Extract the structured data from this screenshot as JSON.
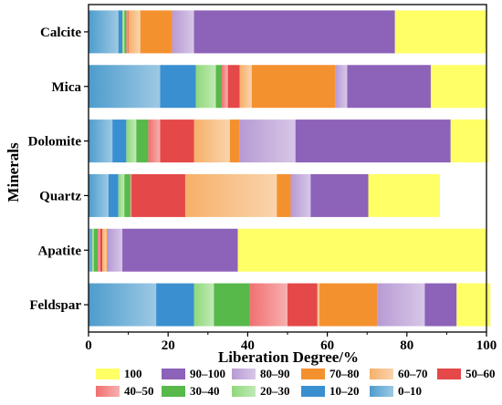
{
  "chart_data": {
    "type": "bar",
    "orientation": "horizontal",
    "stacked": true,
    "title": "",
    "xlabel": "Liberation Degree/%",
    "ylabel": "Minerals",
    "xlim": [
      0,
      100
    ],
    "xticks": [
      0,
      20,
      40,
      60,
      80,
      100
    ],
    "grid": false,
    "legend_position": "bottom",
    "categories": [
      "Calcite",
      "Mica",
      "Dolomite",
      "Quartz",
      "Apatite",
      "Feldspar"
    ],
    "series": [
      {
        "name": "0–10",
        "color": "#4d9ccd",
        "gradient": true,
        "values": [
          7.5,
          18.0,
          6.0,
          5.0,
          0.5,
          17.0
        ]
      },
      {
        "name": "10–20",
        "color": "#3a8fd0",
        "gradient": false,
        "values": [
          1.0,
          9.0,
          3.5,
          2.5,
          0.3,
          9.5
        ]
      },
      {
        "name": "20–30",
        "color": "#8fd87a",
        "gradient": true,
        "values": [
          0.5,
          5.0,
          2.5,
          1.5,
          0.5,
          5.0
        ]
      },
      {
        "name": "30–40",
        "color": "#56b94a",
        "gradient": false,
        "values": [
          0.5,
          1.5,
          3.0,
          1.5,
          1.0,
          9.0
        ]
      },
      {
        "name": "40–50",
        "color": "#f07070",
        "gradient": true,
        "values": [
          0.3,
          1.5,
          3.0,
          0.3,
          0.6,
          9.5
        ]
      },
      {
        "name": "50–60",
        "color": "#e44848",
        "gradient": false,
        "values": [
          0.2,
          3.0,
          8.5,
          13.5,
          0.6,
          7.5
        ]
      },
      {
        "name": "60–70",
        "color": "#f6b069",
        "gradient": true,
        "values": [
          3.0,
          3.0,
          9.0,
          23.0,
          1.0,
          0.5
        ]
      },
      {
        "name": "70–80",
        "color": "#f4912f",
        "gradient": false,
        "values": [
          8.0,
          21.0,
          2.5,
          3.5,
          0.3,
          14.5
        ]
      },
      {
        "name": "80–90",
        "color": "#b79ad4",
        "gradient": true,
        "values": [
          5.5,
          3.0,
          14.0,
          5.0,
          3.7,
          12.0
        ]
      },
      {
        "name": "90–100",
        "color": "#8d62b9",
        "gradient": false,
        "values": [
          50.5,
          21.0,
          39.0,
          14.5,
          29.0,
          8.0
        ]
      },
      {
        "name": "100",
        "color": "#ffff66",
        "gradient": false,
        "values": [
          23.0,
          14.0,
          9.5,
          18.0,
          62.5,
          8.5
        ]
      }
    ]
  }
}
